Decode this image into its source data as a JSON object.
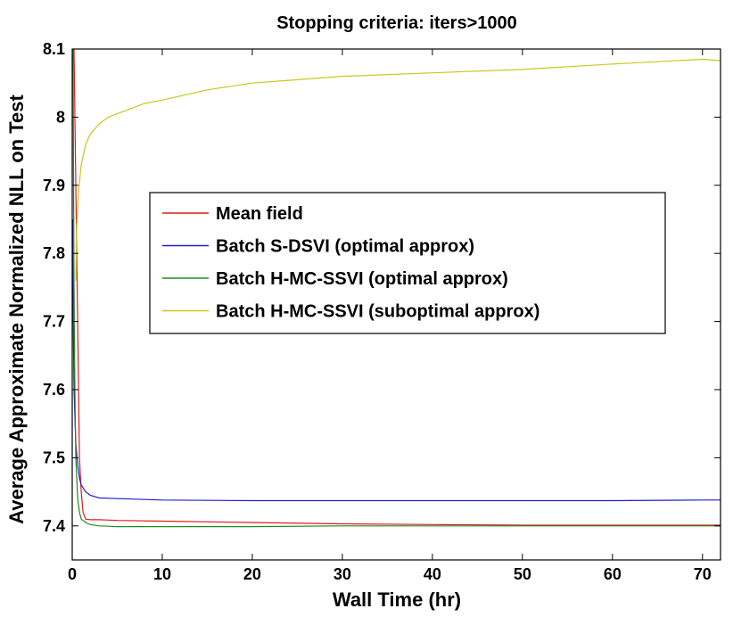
{
  "chart_data": {
    "type": "line",
    "title": "Stopping criteria: iters>1000",
    "xlabel": "Wall Time (hr)",
    "ylabel": "Average Approximate Normalized NLL on Test",
    "xlim": [
      0,
      72
    ],
    "ylim": [
      7.35,
      8.1
    ],
    "xticks": [
      0,
      10,
      20,
      30,
      40,
      50,
      60,
      70
    ],
    "xtick_labels": [
      "0",
      "10",
      "20",
      "30",
      "40",
      "50",
      "60",
      "70"
    ],
    "yticks": [
      7.4,
      7.5,
      7.6,
      7.7,
      7.8,
      7.9,
      8.0,
      8.1
    ],
    "ytick_labels": [
      "7.4",
      "7.5",
      "7.6",
      "7.7",
      "7.8",
      "7.9",
      "8",
      "8.1"
    ],
    "grid": false,
    "legend_position": "center-left",
    "series": [
      {
        "name": "Mean field",
        "color": "#e41a1c",
        "x": [
          0.2,
          0.4,
          0.6,
          0.8,
          1.0,
          1.2,
          1.5,
          2,
          3,
          5,
          10,
          20,
          30,
          40,
          50,
          60,
          72
        ],
        "y": [
          8.1,
          7.9,
          7.7,
          7.5,
          7.45,
          7.42,
          7.41,
          7.409,
          7.409,
          7.408,
          7.407,
          7.405,
          7.403,
          7.402,
          7.401,
          7.401,
          7.401
        ]
      },
      {
        "name": "Batch S-DSVI (optimal approx)",
        "color": "#1f1fd0",
        "x": [
          0.05,
          0.1,
          0.2,
          0.4,
          0.6,
          0.8,
          1.0,
          1.5,
          2,
          3,
          5,
          10,
          20,
          30,
          40,
          50,
          60,
          70,
          72
        ],
        "y": [
          7.85,
          7.72,
          7.6,
          7.52,
          7.49,
          7.47,
          7.46,
          7.45,
          7.445,
          7.441,
          7.44,
          7.438,
          7.437,
          7.437,
          7.437,
          7.437,
          7.437,
          7.438,
          7.438
        ]
      },
      {
        "name": "Batch H-MC-SSVI (optimal approx)",
        "color": "#1e8c1e",
        "x": [
          0.1,
          0.15,
          0.2,
          0.3,
          0.4,
          0.6,
          0.8,
          1.0,
          1.5,
          2,
          3,
          5,
          10,
          20,
          30,
          40,
          50,
          60,
          72
        ],
        "y": [
          8.1,
          7.9,
          7.75,
          7.6,
          7.5,
          7.44,
          7.42,
          7.41,
          7.405,
          7.402,
          7.4,
          7.399,
          7.399,
          7.399,
          7.4,
          7.4,
          7.4,
          7.4,
          7.4
        ]
      },
      {
        "name": "Batch H-MC-SSVI (suboptimal approx)",
        "color": "#c8c81e",
        "x": [
          0.4,
          0.5,
          0.7,
          1.0,
          1.5,
          2,
          3,
          4,
          6,
          8,
          10,
          15,
          20,
          25,
          30,
          40,
          50,
          60,
          70,
          72
        ],
        "y": [
          7.76,
          7.84,
          7.89,
          7.93,
          7.96,
          7.975,
          7.99,
          8.0,
          8.01,
          8.02,
          8.025,
          8.04,
          8.05,
          8.055,
          8.06,
          8.065,
          8.07,
          8.078,
          8.085,
          8.083
        ]
      }
    ]
  }
}
